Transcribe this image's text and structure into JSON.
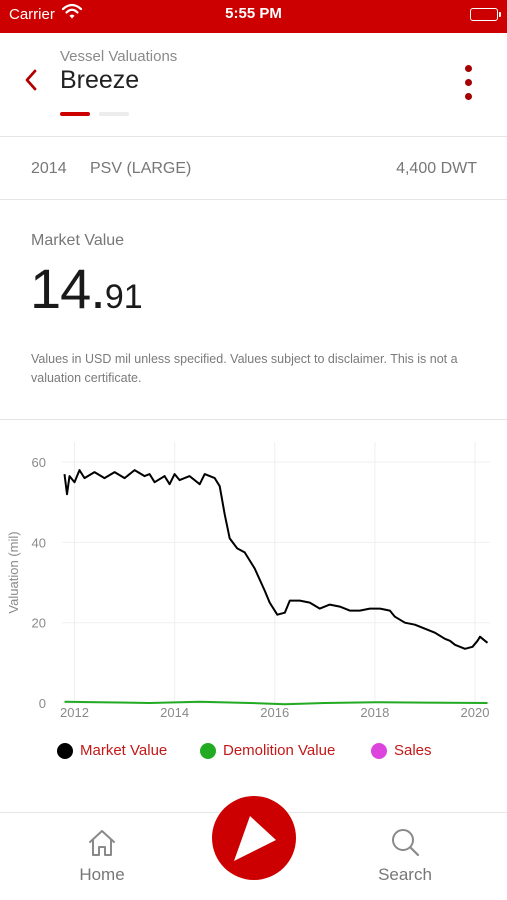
{
  "status_bar": {
    "carrier": "Carrier",
    "time": "5:55 PM",
    "colors": {
      "background": "#cc0000"
    }
  },
  "header": {
    "subtitle": "Vessel Valuations",
    "title": "Breeze",
    "back_icon": "chevron-left-icon",
    "menu_icon": "more-vertical-icon"
  },
  "vessel": {
    "year": "2014",
    "type": "PSV (LARGE)",
    "dwt": "4,400 DWT"
  },
  "market_value": {
    "label": "Market Value",
    "integer_part": "14.",
    "decimal_part": "91",
    "disclaimer": "Values in USD mil unless specified. Values subject to disclaimer. This is not a valuation certificate."
  },
  "chart_data": {
    "type": "line",
    "ylabel": "Valuation (mil)",
    "xlabel": "",
    "ylim": [
      0,
      65
    ],
    "xlim": [
      2011.75,
      2020.3
    ],
    "yticks": [
      "0",
      "20",
      "40",
      "60"
    ],
    "xticks": [
      "2012",
      "2014",
      "2016",
      "2018",
      "2020"
    ],
    "grid": true,
    "legend_position": "bottom",
    "series": [
      {
        "name": "Market Value",
        "color": "#000000",
        "points": [
          [
            2011.8,
            57.0
          ],
          [
            2011.85,
            52.0
          ],
          [
            2011.9,
            56.5
          ],
          [
            2012.0,
            55.0
          ],
          [
            2012.1,
            58.0
          ],
          [
            2012.2,
            56.0
          ],
          [
            2012.4,
            57.5
          ],
          [
            2012.6,
            56.0
          ],
          [
            2012.8,
            57.5
          ],
          [
            2013.0,
            56.0
          ],
          [
            2013.2,
            58.0
          ],
          [
            2013.4,
            56.5
          ],
          [
            2013.5,
            57.0
          ],
          [
            2013.6,
            55.0
          ],
          [
            2013.8,
            56.5
          ],
          [
            2013.9,
            54.5
          ],
          [
            2014.0,
            57.0
          ],
          [
            2014.1,
            55.5
          ],
          [
            2014.3,
            56.5
          ],
          [
            2014.5,
            54.5
          ],
          [
            2014.6,
            57.0
          ],
          [
            2014.8,
            56.0
          ],
          [
            2014.9,
            54.0
          ],
          [
            2015.0,
            47.0
          ],
          [
            2015.1,
            41.0
          ],
          [
            2015.25,
            38.5
          ],
          [
            2015.4,
            37.5
          ],
          [
            2015.6,
            33.5
          ],
          [
            2015.8,
            28.0
          ],
          [
            2015.9,
            25.0
          ],
          [
            2016.05,
            22.0
          ],
          [
            2016.2,
            22.5
          ],
          [
            2016.3,
            25.5
          ],
          [
            2016.5,
            25.5
          ],
          [
            2016.7,
            25.0
          ],
          [
            2016.9,
            23.5
          ],
          [
            2017.1,
            24.5
          ],
          [
            2017.3,
            24.0
          ],
          [
            2017.5,
            23.0
          ],
          [
            2017.7,
            23.0
          ],
          [
            2017.9,
            23.5
          ],
          [
            2018.1,
            23.5
          ],
          [
            2018.3,
            23.0
          ],
          [
            2018.4,
            21.5
          ],
          [
            2018.6,
            20.0
          ],
          [
            2018.8,
            19.5
          ],
          [
            2019.0,
            18.5
          ],
          [
            2019.2,
            17.5
          ],
          [
            2019.4,
            16.0
          ],
          [
            2019.5,
            15.5
          ],
          [
            2019.6,
            14.5
          ],
          [
            2019.8,
            13.5
          ],
          [
            2019.95,
            14.0
          ],
          [
            2020.05,
            15.5
          ],
          [
            2020.1,
            16.5
          ],
          [
            2020.2,
            15.5
          ],
          [
            2020.25,
            15.0
          ]
        ]
      },
      {
        "name": "Demolition Value",
        "color": "#22aa22",
        "points": [
          [
            2011.8,
            0.3
          ],
          [
            2012.5,
            0.2
          ],
          [
            2013.5,
            0.0
          ],
          [
            2014.5,
            0.3
          ],
          [
            2015.5,
            0.0
          ],
          [
            2016.2,
            -0.3
          ],
          [
            2017.0,
            0.0
          ],
          [
            2018.0,
            0.2
          ],
          [
            2019.0,
            0.1
          ],
          [
            2020.25,
            0.0
          ]
        ]
      },
      {
        "name": "Sales",
        "color": "#dd44dd",
        "points": []
      }
    ]
  },
  "tab_bar": {
    "home_label": "Home",
    "search_label": "Search",
    "home_icon": "home-icon",
    "search_icon": "search-icon",
    "center_icon": "play-logo-icon"
  }
}
